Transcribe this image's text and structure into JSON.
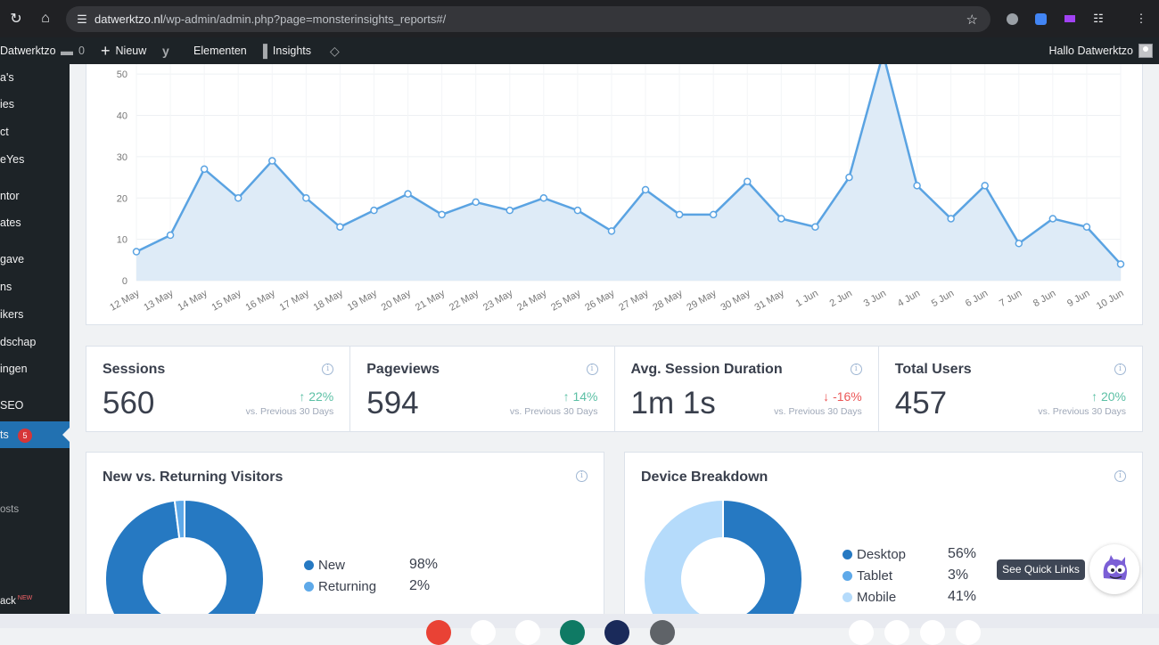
{
  "browser": {
    "url_host": "datwerktzo.nl",
    "url_path": "/wp-admin/admin.php?page=monsterinsights_reports#/"
  },
  "adminbar": {
    "site": "Datwerktzo",
    "comments": "0",
    "new": "Nieuw",
    "elements": "Elementen",
    "insights": "Insights",
    "greeting": "Hallo Datwerktzo"
  },
  "sidebar": {
    "items": [
      "a's",
      "ies",
      "ct",
      "eYes",
      "ntor",
      "ates",
      "gave",
      "ns",
      "ikers",
      "dschap",
      "ingen",
      "SEO",
      "ts",
      "osts",
      "ack"
    ],
    "badge": "5",
    "new_tag": "NEW"
  },
  "chart_data": {
    "type": "area",
    "categories": [
      "12 May",
      "13 May",
      "14 May",
      "15 May",
      "16 May",
      "17 May",
      "18 May",
      "19 May",
      "20 May",
      "21 May",
      "22 May",
      "23 May",
      "24 May",
      "25 May",
      "26 May",
      "27 May",
      "28 May",
      "29 May",
      "30 May",
      "31 May",
      "1 Jun",
      "2 Jun",
      "3 Jun",
      "4 Jun",
      "5 Jun",
      "6 Jun",
      "7 Jun",
      "8 Jun",
      "9 Jun",
      "10 Jun"
    ],
    "values": [
      7,
      11,
      27,
      20,
      29,
      20,
      13,
      17,
      21,
      16,
      19,
      17,
      20,
      17,
      12,
      22,
      16,
      16,
      24,
      15,
      13,
      25,
      55,
      23,
      15,
      23,
      9,
      15,
      13,
      4
    ],
    "yticks": [
      0,
      10,
      20,
      30,
      40,
      50
    ],
    "ylim": [
      0,
      55
    ],
    "color": "#5aa3e2",
    "grid": true
  },
  "stats": [
    {
      "title": "Sessions",
      "value": "560",
      "change": "22%",
      "dir": "up",
      "sub": "vs. Previous 30 Days"
    },
    {
      "title": "Pageviews",
      "value": "594",
      "change": "14%",
      "dir": "up",
      "sub": "vs. Previous 30 Days"
    },
    {
      "title": "Avg. Session Duration",
      "value": "1m 1s",
      "change": "-16%",
      "dir": "down",
      "sub": "vs. Previous 30 Days"
    },
    {
      "title": "Total Users",
      "value": "457",
      "change": "20%",
      "dir": "up",
      "sub": "vs. Previous 30 Days"
    }
  ],
  "new_vs_returning": {
    "title": "New vs. Returning Visitors",
    "items": [
      {
        "label": "New",
        "pct": "98%",
        "value": 98,
        "color": "#2679c2"
      },
      {
        "label": "Returning",
        "pct": "2%",
        "value": 2,
        "color": "#5ea9e9"
      }
    ]
  },
  "device": {
    "title": "Device Breakdown",
    "items": [
      {
        "label": "Desktop",
        "pct": "56%",
        "value": 56,
        "color": "#2679c2"
      },
      {
        "label": "Tablet",
        "pct": "3%",
        "value": 3,
        "color": "#5ea9e9"
      },
      {
        "label": "Mobile",
        "pct": "41%",
        "value": 41,
        "color": "#b5dbfb"
      }
    ]
  },
  "quick_links": "See Quick Links"
}
